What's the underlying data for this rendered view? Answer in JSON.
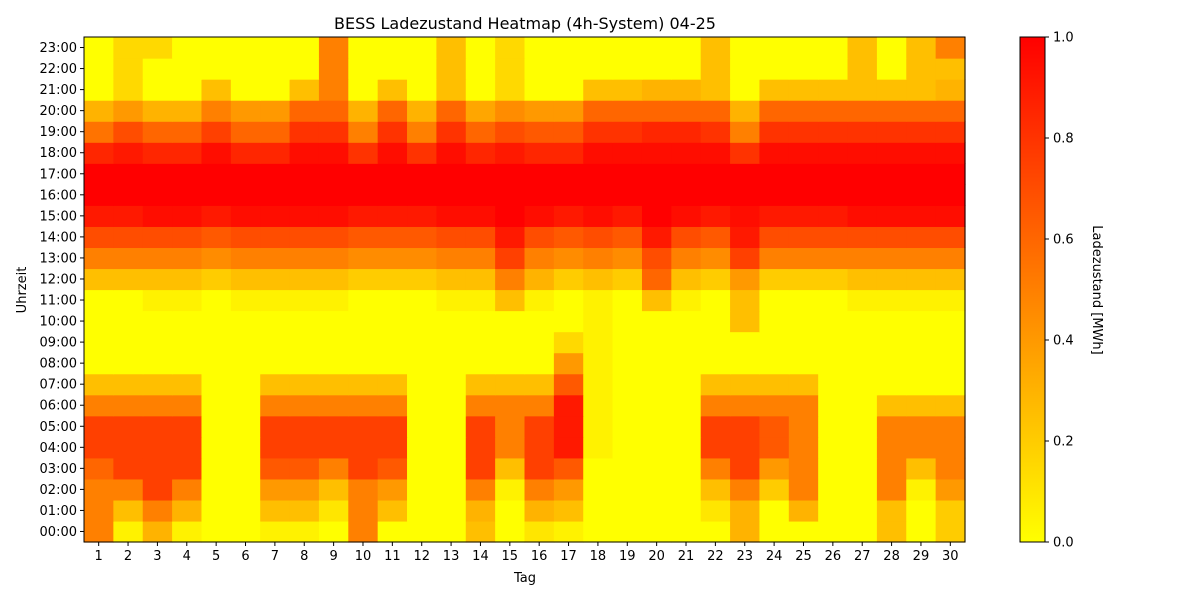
{
  "chart_data": {
    "type": "heatmap",
    "title": "BESS Ladezustand Heatmap (4h-System) 04-25",
    "xlabel": "Tag",
    "ylabel": "Uhrzeit",
    "x_categories": [
      "1",
      "2",
      "3",
      "4",
      "5",
      "6",
      "7",
      "8",
      "9",
      "10",
      "11",
      "12",
      "13",
      "14",
      "15",
      "16",
      "17",
      "18",
      "19",
      "20",
      "21",
      "22",
      "23",
      "24",
      "25",
      "26",
      "27",
      "28",
      "29",
      "30"
    ],
    "y_categories": [
      "00:00",
      "01:00",
      "02:00",
      "03:00",
      "04:00",
      "05:00",
      "06:00",
      "07:00",
      "08:00",
      "09:00",
      "10:00",
      "11:00",
      "12:00",
      "13:00",
      "14:00",
      "15:00",
      "16:00",
      "17:00",
      "18:00",
      "19:00",
      "20:00",
      "21:00",
      "22:00",
      "23:00"
    ],
    "colorbar": {
      "label": "Ladezustand [MWh]",
      "min": 0.0,
      "max": 1.0,
      "ticks": [
        "0.0",
        "0.2",
        "0.4",
        "0.6",
        "0.8",
        "1.0"
      ],
      "colormap": "autumn_r",
      "color_low": "#ffff00",
      "color_high": "#ff0000"
    },
    "values": [
      [
        0.5,
        0.05,
        0.3,
        0.05,
        0.0,
        0.0,
        0.05,
        0.05,
        0.0,
        0.5,
        0.0,
        0.0,
        0.0,
        0.25,
        0.0,
        0.1,
        0.05,
        0.0,
        0.0,
        0.0,
        0.0,
        0.0,
        0.3,
        0.0,
        0.0,
        0.0,
        0.0,
        0.25,
        0.0,
        0.2
      ],
      [
        0.5,
        0.25,
        0.5,
        0.3,
        0.0,
        0.0,
        0.25,
        0.25,
        0.1,
        0.5,
        0.25,
        0.0,
        0.0,
        0.3,
        0.0,
        0.3,
        0.25,
        0.0,
        0.0,
        0.0,
        0.0,
        0.1,
        0.3,
        0.0,
        0.3,
        0.0,
        0.0,
        0.25,
        0.0,
        0.2
      ],
      [
        0.5,
        0.5,
        0.75,
        0.5,
        0.0,
        0.0,
        0.4,
        0.4,
        0.25,
        0.5,
        0.4,
        0.0,
        0.0,
        0.5,
        0.05,
        0.5,
        0.4,
        0.0,
        0.0,
        0.0,
        0.0,
        0.25,
        0.5,
        0.2,
        0.5,
        0.0,
        0.0,
        0.5,
        0.05,
        0.4
      ],
      [
        0.6,
        0.75,
        0.75,
        0.75,
        0.0,
        0.0,
        0.65,
        0.65,
        0.5,
        0.75,
        0.65,
        0.0,
        0.0,
        0.75,
        0.25,
        0.75,
        0.65,
        0.0,
        0.0,
        0.0,
        0.0,
        0.5,
        0.75,
        0.4,
        0.5,
        0.0,
        0.0,
        0.5,
        0.25,
        0.5
      ],
      [
        0.75,
        0.75,
        0.75,
        0.75,
        0.0,
        0.0,
        0.75,
        0.75,
        0.75,
        0.75,
        0.75,
        0.0,
        0.0,
        0.75,
        0.5,
        0.75,
        0.9,
        0.05,
        0.0,
        0.0,
        0.0,
        0.75,
        0.75,
        0.65,
        0.5,
        0.0,
        0.0,
        0.5,
        0.5,
        0.5
      ],
      [
        0.75,
        0.75,
        0.75,
        0.75,
        0.0,
        0.0,
        0.75,
        0.75,
        0.75,
        0.75,
        0.75,
        0.0,
        0.0,
        0.75,
        0.5,
        0.75,
        0.9,
        0.05,
        0.0,
        0.0,
        0.0,
        0.75,
        0.75,
        0.65,
        0.5,
        0.0,
        0.0,
        0.5,
        0.5,
        0.5
      ],
      [
        0.5,
        0.5,
        0.5,
        0.5,
        0.0,
        0.0,
        0.5,
        0.5,
        0.5,
        0.5,
        0.5,
        0.0,
        0.0,
        0.5,
        0.5,
        0.5,
        0.9,
        0.05,
        0.0,
        0.0,
        0.0,
        0.5,
        0.5,
        0.5,
        0.5,
        0.0,
        0.0,
        0.25,
        0.25,
        0.25
      ],
      [
        0.25,
        0.25,
        0.25,
        0.25,
        0.0,
        0.0,
        0.25,
        0.25,
        0.25,
        0.25,
        0.25,
        0.0,
        0.0,
        0.25,
        0.25,
        0.25,
        0.65,
        0.05,
        0.0,
        0.0,
        0.0,
        0.25,
        0.25,
        0.25,
        0.25,
        0.0,
        0.0,
        0.0,
        0.0,
        0.0
      ],
      [
        0.0,
        0.0,
        0.0,
        0.0,
        0.0,
        0.0,
        0.0,
        0.0,
        0.0,
        0.0,
        0.0,
        0.0,
        0.0,
        0.0,
        0.0,
        0.0,
        0.4,
        0.05,
        0.0,
        0.0,
        0.0,
        0.0,
        0.0,
        0.0,
        0.0,
        0.0,
        0.0,
        0.0,
        0.0,
        0.0
      ],
      [
        0.0,
        0.0,
        0.0,
        0.0,
        0.0,
        0.0,
        0.0,
        0.0,
        0.0,
        0.0,
        0.0,
        0.0,
        0.0,
        0.0,
        0.0,
        0.0,
        0.15,
        0.05,
        0.0,
        0.0,
        0.0,
        0.0,
        0.0,
        0.0,
        0.0,
        0.0,
        0.0,
        0.0,
        0.0,
        0.0
      ],
      [
        0.0,
        0.0,
        0.0,
        0.0,
        0.0,
        0.0,
        0.0,
        0.0,
        0.0,
        0.0,
        0.0,
        0.0,
        0.0,
        0.0,
        0.0,
        0.0,
        0.0,
        0.05,
        0.0,
        0.0,
        0.0,
        0.0,
        0.25,
        0.0,
        0.0,
        0.0,
        0.0,
        0.0,
        0.0,
        0.0
      ],
      [
        0.0,
        0.0,
        0.05,
        0.05,
        0.0,
        0.05,
        0.05,
        0.05,
        0.05,
        0.0,
        0.0,
        0.0,
        0.05,
        0.05,
        0.25,
        0.05,
        0.0,
        0.05,
        0.0,
        0.25,
        0.05,
        0.0,
        0.25,
        0.0,
        0.0,
        0.0,
        0.05,
        0.05,
        0.05,
        0.05
      ],
      [
        0.25,
        0.25,
        0.25,
        0.25,
        0.2,
        0.25,
        0.25,
        0.25,
        0.25,
        0.2,
        0.2,
        0.2,
        0.25,
        0.25,
        0.5,
        0.3,
        0.2,
        0.25,
        0.2,
        0.6,
        0.25,
        0.2,
        0.4,
        0.2,
        0.2,
        0.2,
        0.25,
        0.25,
        0.25,
        0.25
      ],
      [
        0.5,
        0.5,
        0.5,
        0.5,
        0.45,
        0.5,
        0.5,
        0.5,
        0.5,
        0.45,
        0.45,
        0.45,
        0.5,
        0.5,
        0.75,
        0.5,
        0.45,
        0.5,
        0.45,
        0.7,
        0.5,
        0.45,
        0.75,
        0.5,
        0.5,
        0.5,
        0.5,
        0.5,
        0.5,
        0.5
      ],
      [
        0.7,
        0.7,
        0.7,
        0.7,
        0.65,
        0.7,
        0.7,
        0.7,
        0.7,
        0.65,
        0.65,
        0.65,
        0.7,
        0.7,
        0.9,
        0.7,
        0.65,
        0.7,
        0.65,
        0.9,
        0.7,
        0.65,
        0.9,
        0.7,
        0.7,
        0.7,
        0.7,
        0.7,
        0.7,
        0.7
      ],
      [
        0.9,
        0.9,
        0.95,
        0.95,
        0.9,
        0.95,
        0.95,
        0.95,
        0.95,
        0.9,
        0.9,
        0.9,
        0.95,
        0.95,
        1.0,
        0.95,
        0.9,
        0.95,
        0.9,
        1.0,
        0.95,
        0.9,
        0.95,
        0.9,
        0.9,
        0.9,
        0.95,
        0.95,
        0.95,
        0.95
      ],
      [
        1.0,
        1.0,
        1.0,
        1.0,
        1.0,
        1.0,
        1.0,
        1.0,
        1.0,
        1.0,
        1.0,
        1.0,
        1.0,
        1.0,
        1.0,
        1.0,
        1.0,
        1.0,
        1.0,
        1.0,
        1.0,
        1.0,
        1.0,
        1.0,
        1.0,
        1.0,
        1.0,
        1.0,
        1.0,
        1.0
      ],
      [
        1.0,
        1.0,
        1.0,
        1.0,
        1.0,
        1.0,
        1.0,
        1.0,
        1.0,
        1.0,
        1.0,
        1.0,
        1.0,
        1.0,
        1.0,
        1.0,
        1.0,
        1.0,
        1.0,
        1.0,
        1.0,
        1.0,
        1.0,
        1.0,
        1.0,
        1.0,
        1.0,
        1.0,
        1.0,
        1.0
      ],
      [
        0.85,
        0.9,
        0.85,
        0.85,
        0.95,
        0.85,
        0.85,
        0.95,
        0.95,
        0.8,
        0.95,
        0.8,
        0.95,
        0.85,
        0.9,
        0.85,
        0.85,
        0.95,
        0.95,
        0.95,
        0.95,
        0.95,
        0.8,
        0.95,
        0.95,
        0.95,
        0.95,
        0.95,
        0.95,
        0.95
      ],
      [
        0.55,
        0.7,
        0.6,
        0.6,
        0.75,
        0.6,
        0.6,
        0.8,
        0.8,
        0.5,
        0.8,
        0.5,
        0.8,
        0.6,
        0.7,
        0.65,
        0.65,
        0.8,
        0.8,
        0.85,
        0.85,
        0.8,
        0.5,
        0.8,
        0.8,
        0.8,
        0.8,
        0.8,
        0.8,
        0.8
      ],
      [
        0.3,
        0.4,
        0.3,
        0.3,
        0.5,
        0.4,
        0.4,
        0.6,
        0.6,
        0.3,
        0.6,
        0.3,
        0.6,
        0.35,
        0.45,
        0.4,
        0.4,
        0.6,
        0.6,
        0.6,
        0.6,
        0.6,
        0.3,
        0.6,
        0.6,
        0.6,
        0.6,
        0.6,
        0.6,
        0.6
      ],
      [
        0.0,
        0.15,
        0.0,
        0.0,
        0.25,
        0.0,
        0.0,
        0.25,
        0.5,
        0.0,
        0.25,
        0.0,
        0.25,
        0.0,
        0.15,
        0.0,
        0.0,
        0.25,
        0.25,
        0.3,
        0.3,
        0.25,
        0.0,
        0.25,
        0.25,
        0.25,
        0.25,
        0.25,
        0.25,
        0.3
      ],
      [
        0.0,
        0.15,
        0.0,
        0.0,
        0.0,
        0.0,
        0.0,
        0.0,
        0.5,
        0.0,
        0.0,
        0.0,
        0.25,
        0.0,
        0.15,
        0.0,
        0.0,
        0.0,
        0.0,
        0.0,
        0.0,
        0.25,
        0.0,
        0.0,
        0.0,
        0.0,
        0.25,
        0.0,
        0.25,
        0.25
      ],
      [
        0.0,
        0.15,
        0.15,
        0.0,
        0.0,
        0.0,
        0.0,
        0.0,
        0.5,
        0.0,
        0.0,
        0.0,
        0.25,
        0.0,
        0.15,
        0.0,
        0.0,
        0.0,
        0.0,
        0.0,
        0.0,
        0.25,
        0.0,
        0.0,
        0.0,
        0.0,
        0.25,
        0.0,
        0.25,
        0.5
      ]
    ]
  }
}
